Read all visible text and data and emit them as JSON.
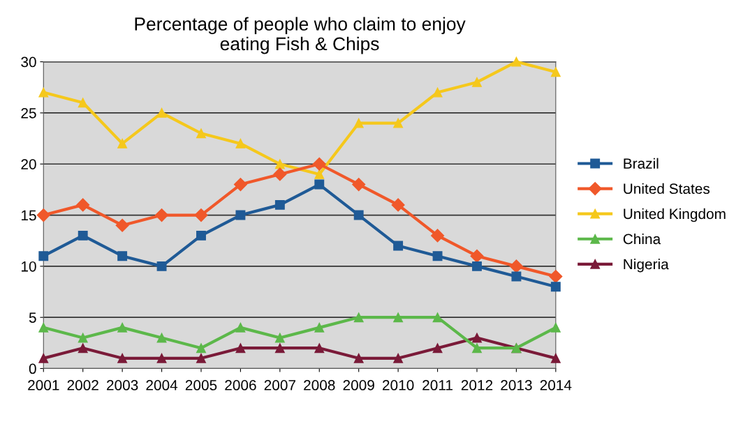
{
  "chart_data": {
    "type": "line",
    "title": "Percentage of people who claim to enjoy\neating Fish & Chips",
    "x": [
      2001,
      2002,
      2003,
      2004,
      2005,
      2006,
      2007,
      2008,
      2009,
      2010,
      2011,
      2012,
      2013,
      2014
    ],
    "xlim": [
      2001,
      2014
    ],
    "xticks": [
      2001,
      2002,
      2003,
      2004,
      2005,
      2006,
      2007,
      2008,
      2009,
      2010,
      2011,
      2012,
      2013,
      2014
    ],
    "ylim": [
      0,
      30
    ],
    "yticks": [
      0,
      5,
      10,
      15,
      20,
      25,
      30
    ],
    "grid": "y",
    "legend": "right",
    "series": [
      {
        "name": "Brazil",
        "color": "#1f5a96",
        "marker": "square",
        "values": [
          11,
          13,
          11,
          10,
          13,
          15,
          16,
          18,
          15,
          12,
          11,
          10,
          9,
          8
        ]
      },
      {
        "name": "United States",
        "color": "#f0582a",
        "marker": "diamond",
        "values": [
          15,
          16,
          14,
          15,
          15,
          18,
          19,
          20,
          18,
          16,
          13,
          11,
          10,
          9
        ]
      },
      {
        "name": "United Kingdom",
        "color": "#f5c81c",
        "marker": "triangle",
        "values": [
          27,
          26,
          22,
          25,
          23,
          22,
          20,
          19,
          24,
          24,
          27,
          28,
          30,
          29
        ]
      },
      {
        "name": "China",
        "color": "#5cb84a",
        "marker": "triangle",
        "values": [
          4,
          3,
          4,
          3,
          2,
          4,
          3,
          4,
          5,
          5,
          5,
          2,
          2,
          4
        ]
      },
      {
        "name": "Nigeria",
        "color": "#7a1a38",
        "marker": "triangle",
        "values": [
          1,
          2,
          1,
          1,
          1,
          2,
          2,
          2,
          1,
          1,
          2,
          3,
          2,
          1
        ]
      }
    ]
  }
}
